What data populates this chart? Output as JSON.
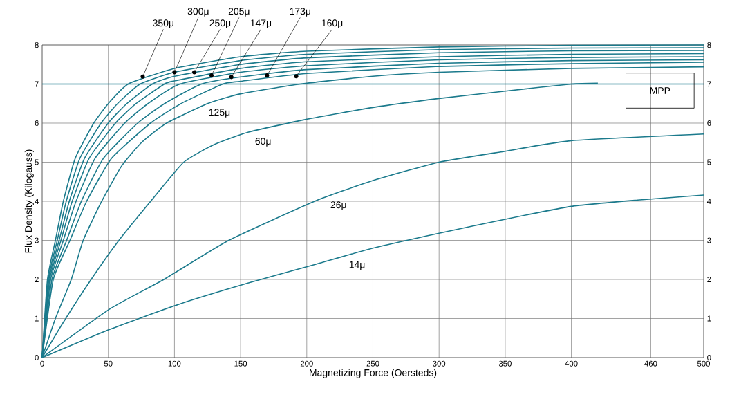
{
  "chart_data": {
    "type": "line",
    "xlabel": "Magnetizing Force (Oersteds)",
    "ylabel": "Flux Density (Kilogauss)",
    "xlim": [
      0,
      500
    ],
    "ylim": [
      0,
      8
    ],
    "y2lim": [
      0,
      8
    ],
    "xticks": [
      0,
      50,
      100,
      150,
      200,
      250,
      300,
      350,
      400,
      460,
      500
    ],
    "yticks": [
      0,
      1,
      2,
      3,
      4,
      5,
      6,
      7,
      8
    ],
    "y2ticks": [
      0,
      1,
      2,
      3,
      4,
      5,
      6,
      7,
      8
    ],
    "grid": true,
    "series": [
      {
        "color": "#1b7a8c",
        "x": [
          0,
          4,
          10,
          16,
          25,
          39,
          50,
          65,
          100,
          150,
          200,
          300,
          400,
          500
        ],
        "values": [
          0,
          2,
          3,
          4,
          5.1,
          6,
          6.5,
          7,
          7.4,
          7.7,
          7.84,
          7.95,
          7.99,
          8.0
        ]
      },
      {
        "color": "#1b7a8c",
        "x": [
          0,
          4.6,
          11.4,
          18.2,
          28.5,
          44.5,
          57,
          74,
          100,
          150,
          200,
          300,
          400,
          500
        ],
        "values": [
          0,
          2,
          3,
          4,
          5.1,
          6,
          6.5,
          7,
          7.3,
          7.6,
          7.76,
          7.88,
          7.92,
          7.93
        ]
      },
      {
        "color": "#1b7a8c",
        "x": [
          0,
          5.1,
          12.8,
          20.5,
          32,
          49.9,
          64,
          83.2,
          100,
          150,
          200,
          300,
          400,
          500
        ],
        "values": [
          0,
          2,
          3,
          4,
          5.1,
          6,
          6.5,
          7,
          7.2,
          7.5,
          7.67,
          7.8,
          7.85,
          7.86
        ]
      },
      {
        "color": "#1b7a8c",
        "x": [
          0,
          5.7,
          14.2,
          22.7,
          35.5,
          55.4,
          71,
          92.3,
          100,
          150,
          200,
          300,
          400,
          500
        ],
        "values": [
          0,
          2,
          3,
          4,
          5.1,
          6,
          6.5,
          7,
          7.08,
          7.4,
          7.57,
          7.7,
          7.76,
          7.78
        ]
      },
      {
        "color": "#1b7a8c",
        "x": [
          0,
          6.4,
          16,
          25.6,
          40,
          62.4,
          80,
          104,
          150,
          200,
          300,
          400,
          500
        ],
        "values": [
          0,
          2,
          3,
          4,
          5.1,
          6,
          6.5,
          7,
          7.3,
          7.47,
          7.62,
          7.68,
          7.7
        ]
      },
      {
        "color": "#1b7a8c",
        "x": [
          0,
          7.4,
          18.5,
          29.6,
          46.3,
          72.2,
          92.5,
          120.3,
          150,
          200,
          300,
          400,
          500
        ],
        "values": [
          0,
          2,
          3,
          4,
          5.1,
          6,
          6.5,
          7,
          7.18,
          7.37,
          7.53,
          7.6,
          7.62
        ]
      },
      {
        "color": "#1b7a8c",
        "x": [
          0,
          8.4,
          21,
          33.6,
          52.5,
          81.9,
          105,
          136.5,
          150,
          200,
          300,
          400,
          500
        ],
        "values": [
          0,
          2,
          3,
          4,
          5.1,
          6,
          6.5,
          7,
          7.07,
          7.27,
          7.45,
          7.52,
          7.56
        ]
      },
      {
        "color": "#1b7a8c",
        "x": [
          0,
          10,
          22,
          31,
          45,
          60,
          75,
          94,
          125,
          150,
          195,
          250,
          300,
          400,
          500
        ],
        "values": [
          0,
          1.0,
          2,
          3,
          4,
          4.9,
          5.5,
          6,
          6.5,
          6.75,
          7,
          7.2,
          7.3,
          7.4,
          7.44
        ]
      },
      {
        "color": "#1b7a8c",
        "x": [
          0,
          15,
          37,
          58,
          82,
          107,
          130,
          156,
          200,
          250,
          300,
          350,
          400,
          420
        ],
        "values": [
          0,
          0.85,
          2,
          3,
          4,
          5,
          5.45,
          5.77,
          6.1,
          6.4,
          6.63,
          6.82,
          7.0,
          7.02
        ]
      },
      {
        "color": "#1b7a8c",
        "x": [
          0,
          51,
          92,
          141,
          206,
          250,
          300,
          350,
          400,
          500
        ],
        "values": [
          0,
          1.24,
          2,
          3,
          4,
          4.53,
          5.0,
          5.28,
          5.55,
          5.72
        ]
      },
      {
        "color": "#1b7a8c",
        "x": [
          0,
          51,
          103,
          156,
          207,
          250,
          300,
          350,
          400,
          450,
          500
        ],
        "values": [
          0,
          0.72,
          1.36,
          1.91,
          2.39,
          2.8,
          3.18,
          3.54,
          3.87,
          4.03,
          4.16
        ]
      }
    ],
    "ref_lines": [
      {
        "axis": "y",
        "value": 7,
        "color": "#1b7a8c"
      }
    ],
    "annotations": [
      {
        "text": "350μ",
        "x": 76,
        "y": 7.19
      },
      {
        "text": "300μ",
        "x": 100,
        "y": 7.3
      },
      {
        "text": "250μ",
        "x": 115,
        "y": 7.3
      },
      {
        "text": "205μ",
        "x": 128,
        "y": 7.22
      },
      {
        "text": "147μ",
        "x": 143,
        "y": 7.18
      },
      {
        "text": "173μ",
        "x": 170,
        "y": 7.22
      },
      {
        "text": "160μ",
        "x": 192,
        "y": 7.2
      },
      {
        "text": "125μ",
        "x": 134,
        "y": 6.59
      },
      {
        "text": "60μ",
        "x": 167,
        "y": 5.85
      },
      {
        "text": "26μ",
        "x": 224,
        "y": 4.22
      },
      {
        "text": "14μ",
        "x": 238,
        "y": 2.69
      },
      "MPP"
    ]
  }
}
